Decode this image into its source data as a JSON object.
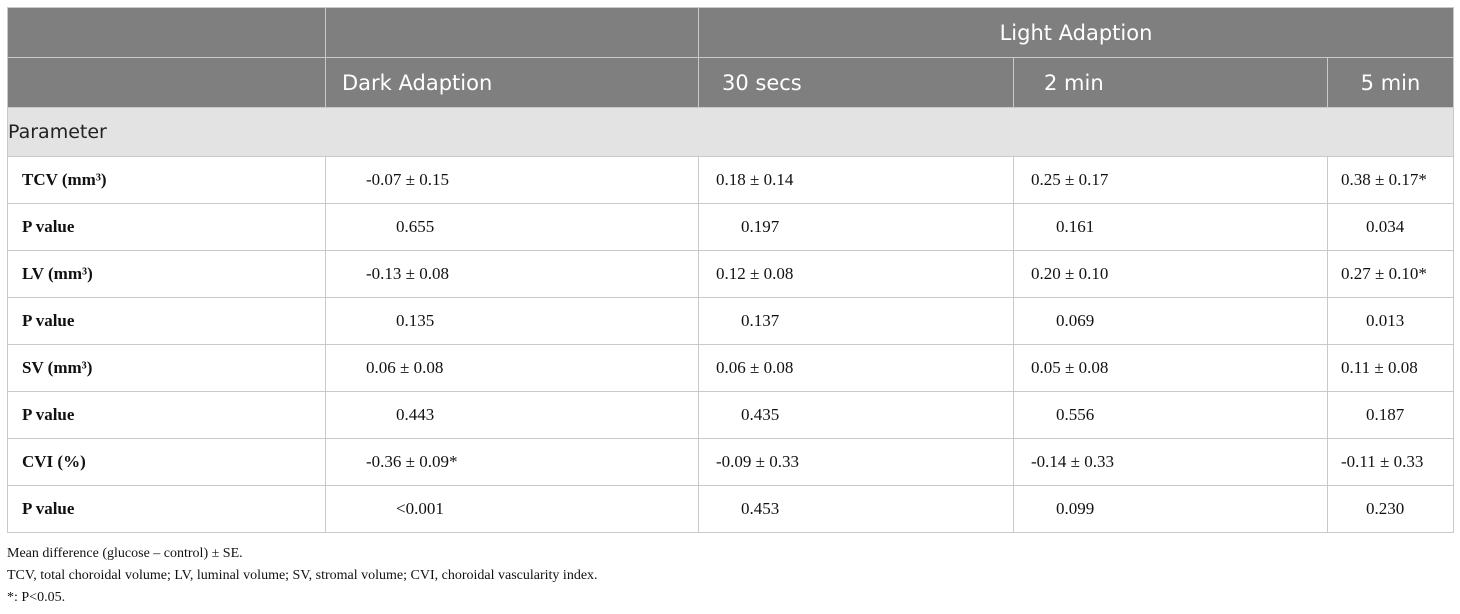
{
  "header": {
    "group_label": "Light Adaption",
    "columns": [
      "Dark Adaption",
      "30 secs",
      "2 min",
      "5 min"
    ]
  },
  "section_label": "Parameter",
  "rows": [
    {
      "label": "TCV (mm³)",
      "values": [
        "-0.07 ± 0.15",
        "0.18 ± 0.14",
        "0.25 ± 0.17",
        "0.38 ± 0.17*"
      ]
    },
    {
      "label": "P value",
      "values": [
        "0.655",
        "0.197",
        "0.161",
        "0.034"
      ]
    },
    {
      "label": "LV (mm³)",
      "values": [
        "-0.13 ± 0.08",
        "0.12 ± 0.08",
        "0.20 ± 0.10",
        "0.27 ± 0.10*"
      ]
    },
    {
      "label": "P value",
      "values": [
        "0.135",
        "0.137",
        "0.069",
        "0.013"
      ]
    },
    {
      "label": "SV (mm³)",
      "values": [
        "0.06 ± 0.08",
        "0.06 ± 0.08",
        "0.05 ± 0.08",
        "0.11 ± 0.08"
      ]
    },
    {
      "label": "P value",
      "values": [
        "0.443",
        "0.435",
        "0.556",
        "0.187"
      ]
    },
    {
      "label": "CVI (%)",
      "values": [
        "-0.36 ± 0.09*",
        "-0.09 ± 0.33",
        "-0.14 ± 0.33",
        "-0.11 ± 0.33"
      ]
    },
    {
      "label": "P value",
      "values": [
        "<0.001",
        "0.453",
        "0.099",
        "0.230"
      ]
    }
  ],
  "footnotes": [
    "Mean difference (glucose – control) ± SE.",
    "TCV, total choroidal volume; LV, luminal volume; SV, stromal volume; CVI, choroidal vascularity index.",
    "*: P<0.05."
  ]
}
